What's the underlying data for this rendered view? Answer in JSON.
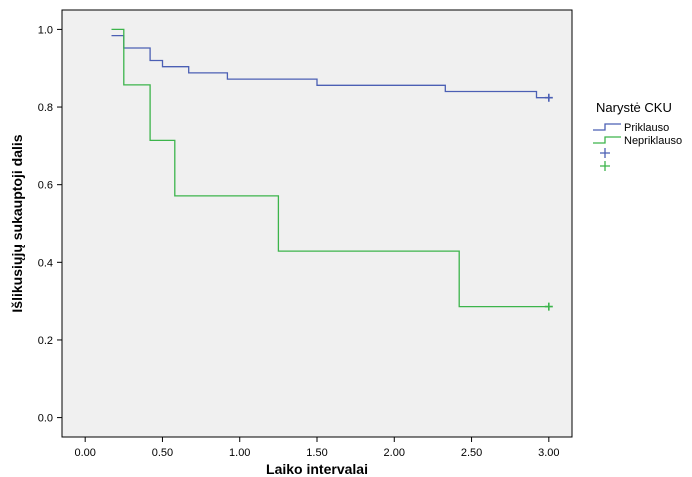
{
  "chart_data": {
    "type": "line",
    "step": true,
    "xlabel": "Laiko intervalai",
    "ylabel": "Išlikusiųjų sukauptoji dalis",
    "xlim": [
      -0.15,
      3.15
    ],
    "ylim": [
      -0.05,
      1.05
    ],
    "x_ticks": [
      0.0,
      0.5,
      1.0,
      1.5,
      2.0,
      2.5,
      3.0
    ],
    "x_tick_labels": [
      "0.00",
      "0.50",
      "1.00",
      "1.50",
      "2.00",
      "2.50",
      "3.00"
    ],
    "y_ticks": [
      0.0,
      0.2,
      0.4,
      0.6,
      0.8,
      1.0
    ],
    "y_tick_labels": [
      "0.0",
      "0.2",
      "0.4",
      "0.6",
      "0.8",
      "1.0"
    ],
    "grid": false,
    "legend": {
      "title": "Narystė CKU",
      "placement": "right",
      "entries": [
        "Priklauso",
        "Nepriklauso"
      ]
    },
    "series": [
      {
        "name": "Priklauso",
        "color": "#4b5fb4",
        "points": [
          [
            0.17,
            0.984
          ],
          [
            0.25,
            0.984
          ],
          [
            0.25,
            0.952
          ],
          [
            0.42,
            0.952
          ],
          [
            0.42,
            0.92
          ],
          [
            0.5,
            0.92
          ],
          [
            0.5,
            0.904
          ],
          [
            0.67,
            0.904
          ],
          [
            0.67,
            0.888
          ],
          [
            0.92,
            0.888
          ],
          [
            0.92,
            0.872
          ],
          [
            1.5,
            0.872
          ],
          [
            1.5,
            0.856
          ],
          [
            2.33,
            0.856
          ],
          [
            2.33,
            0.84
          ],
          [
            2.92,
            0.84
          ],
          [
            2.92,
            0.824
          ],
          [
            3.0,
            0.824
          ]
        ],
        "censored": [
          [
            3.0,
            0.824
          ]
        ]
      },
      {
        "name": "Nepriklauso",
        "color": "#3cb44b",
        "points": [
          [
            0.17,
            1.0
          ],
          [
            0.25,
            1.0
          ],
          [
            0.25,
            0.857
          ],
          [
            0.42,
            0.857
          ],
          [
            0.42,
            0.714
          ],
          [
            0.58,
            0.714
          ],
          [
            0.58,
            0.571
          ],
          [
            1.25,
            0.571
          ],
          [
            1.25,
            0.429
          ],
          [
            2.42,
            0.429
          ],
          [
            2.42,
            0.286
          ],
          [
            3.0,
            0.286
          ]
        ],
        "censored": [
          [
            3.0,
            0.286
          ]
        ]
      }
    ]
  }
}
